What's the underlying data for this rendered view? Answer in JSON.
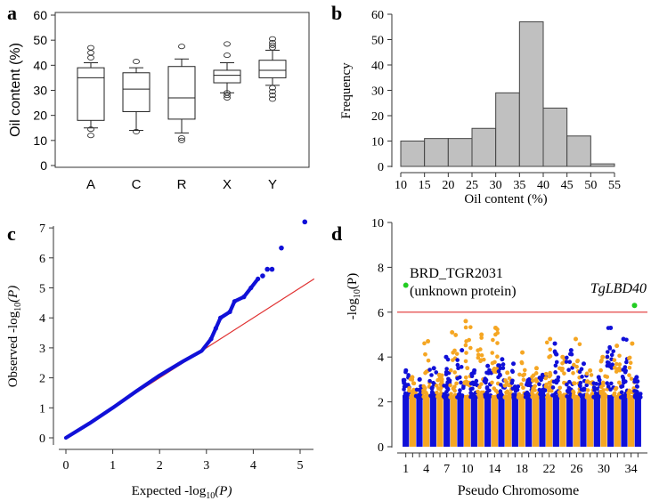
{
  "colors": {
    "box_fill": "#ffffff",
    "hist_fill": "#c0c0c0",
    "blue": "#1010d8",
    "orange": "#f5a623",
    "green": "#22cc22",
    "red_line": "#e03030",
    "axis": "#333333"
  },
  "chart_data": [
    {
      "panel_label": "a",
      "type": "box",
      "ylabel": "Oil content (%)",
      "categories": [
        "A",
        "C",
        "R",
        "X",
        "Y"
      ],
      "ylim": [
        0,
        60
      ],
      "yticks": [
        "0",
        "10",
        "20",
        "30",
        "40",
        "50",
        "60"
      ],
      "boxes": [
        {
          "name": "A",
          "whisker_low": 15,
          "q1": 18,
          "median": 35,
          "q3": 39,
          "whisker_high": 41,
          "outliers": [
            12,
            14.5,
            43,
            45,
            47
          ]
        },
        {
          "name": "C",
          "whisker_low": 14,
          "q1": 21.5,
          "median": 30.5,
          "q3": 37,
          "whisker_high": 39,
          "outliers": [
            13.5,
            41.5
          ]
        },
        {
          "name": "R",
          "whisker_low": 13,
          "q1": 18.5,
          "median": 27,
          "q3": 39.5,
          "whisker_high": 42.5,
          "outliers": [
            10,
            11,
            47.5
          ]
        },
        {
          "name": "X",
          "whisker_low": 29,
          "q1": 33,
          "median": 36,
          "q3": 38,
          "whisker_high": 41,
          "outliers": [
            27,
            28,
            29,
            44,
            48.5
          ]
        },
        {
          "name": "Y",
          "whisker_low": 32,
          "q1": 35,
          "median": 38,
          "q3": 42,
          "whisker_high": 46,
          "outliers": [
            26.5,
            28,
            29.5,
            31,
            47,
            48,
            49,
            50.5
          ]
        }
      ]
    },
    {
      "panel_label": "b",
      "type": "bar",
      "xlabel": "Oil content (%)",
      "ylabel": "Frequency",
      "bin_edges": [
        10,
        15,
        20,
        25,
        30,
        35,
        40,
        45,
        50,
        55
      ],
      "xticks": [
        "10",
        "15",
        "20",
        "25",
        "30",
        "35",
        "40",
        "45",
        "50",
        "55"
      ],
      "values": [
        10,
        11,
        11,
        15,
        29,
        57,
        23,
        12,
        1
      ],
      "ylim": [
        0,
        60
      ],
      "yticks": [
        "0",
        "10",
        "20",
        "30",
        "40",
        "50",
        "60"
      ]
    },
    {
      "panel_label": "c",
      "type": "scatter",
      "xlabel_pre": "Expected -log",
      "xlabel_sub": "10",
      "xlabel_post": "(P)",
      "ylabel_pre": "Observed -log",
      "ylabel_sub": "10",
      "ylabel_post": "(P)",
      "xlim": [
        -0.2,
        5.3
      ],
      "ylim": [
        -0.2,
        7.5
      ],
      "xticks": [
        "0",
        "1",
        "2",
        "3",
        "4",
        "5"
      ],
      "yticks": [
        "0",
        "1",
        "2",
        "3",
        "4",
        "5",
        "6",
        "7"
      ],
      "expected_line": [
        [
          0,
          0
        ],
        [
          5.3,
          5.3
        ]
      ],
      "observed_curve": [
        [
          0,
          0
        ],
        [
          0.5,
          0.48
        ],
        [
          1,
          1.0
        ],
        [
          1.5,
          1.55
        ],
        [
          2,
          2.08
        ],
        [
          2.5,
          2.55
        ],
        [
          2.9,
          2.9
        ],
        [
          3.1,
          3.3
        ],
        [
          3.2,
          3.65
        ],
        [
          3.3,
          4.0
        ],
        [
          3.5,
          4.2
        ],
        [
          3.6,
          4.55
        ],
        [
          3.8,
          4.7
        ],
        [
          3.95,
          5.0
        ],
        [
          4.1,
          5.3
        ]
      ],
      "top_points": [
        [
          4.2,
          5.4
        ],
        [
          4.3,
          5.62
        ],
        [
          4.4,
          5.62
        ],
        [
          4.6,
          6.33
        ],
        [
          5.1,
          7.2
        ]
      ]
    },
    {
      "panel_label": "d",
      "type": "scatter",
      "xlabel": "Pseudo Chromosome",
      "ylabel_pre": "-log",
      "ylabel_sub": "10",
      "ylabel_post": "(P)",
      "xlim": [
        0,
        36
      ],
      "ylim": [
        0,
        10
      ],
      "xticks": [
        "1",
        "4",
        "7",
        "10",
        "14",
        "18",
        "22",
        "26",
        "30",
        "34"
      ],
      "xtick_positions": [
        1,
        4,
        7,
        10,
        14,
        18,
        22,
        26,
        30,
        34
      ],
      "yticks": [
        "0",
        "2",
        "4",
        "6",
        "8",
        "10"
      ],
      "threshold": 6,
      "chromosome_count": 35,
      "chromosome_peaks": [
        3.4,
        3.1,
        3.0,
        4.7,
        3.5,
        3.2,
        4.0,
        5.1,
        4.3,
        5.6,
        3.4,
        5.0,
        3.6,
        5.3,
        3.9,
        3.3,
        3.7,
        4.2,
        3.0,
        3.5,
        3.2,
        4.8,
        4.6,
        4.0,
        4.3,
        4.8,
        3.7,
        3.4,
        3.1,
        4.0,
        5.3,
        4.5,
        4.8,
        4.6,
        3.1
      ],
      "significant_snps": [
        {
          "chromosome": 1,
          "value": 7.2,
          "label_line1": "BRD_TGR2031",
          "label_line2": "(unknown protein)"
        },
        {
          "chromosome": 34.5,
          "value": 6.3,
          "label_line1": "TgLBD40"
        }
      ]
    }
  ]
}
